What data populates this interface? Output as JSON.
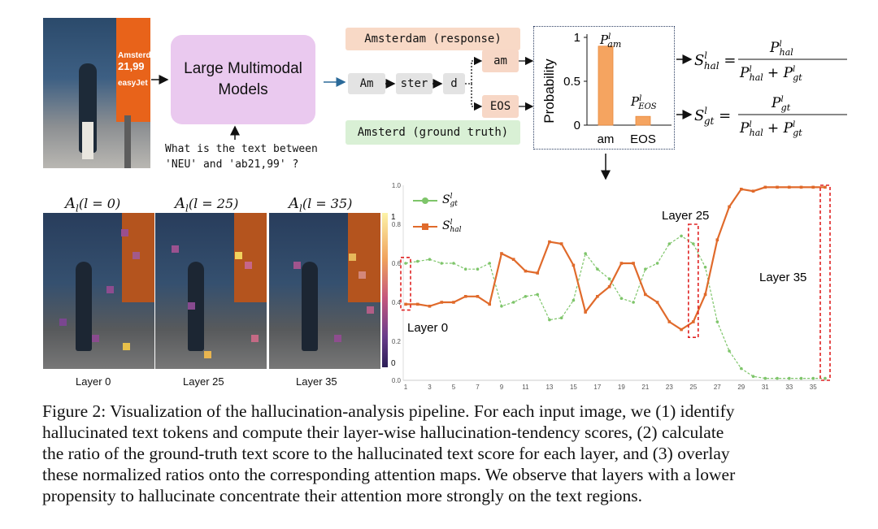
{
  "pipeline": {
    "model_label_line1": "Large Multimodal",
    "model_label_line2": "Models",
    "question_line1": "What is the text between",
    "question_line2": "'NEU' and 'ab21,99' ?",
    "response_label": "Amsterdam (response)",
    "ground_truth_label": "Amsterd (ground truth)",
    "tokens": [
      "Am",
      "ster",
      "d"
    ],
    "candidate_am": "am",
    "candidate_eos": "EOS",
    "photo_text_line1": "Amsterd",
    "photo_text_line2": "21,99",
    "photo_text_line3": "easyJet"
  },
  "prob_chart": {
    "type": "bar",
    "categories": [
      "am",
      "EOS"
    ],
    "values": [
      0.9,
      0.1
    ],
    "ylabel": "Probability",
    "yticks": [
      "0",
      "0.5",
      "1"
    ],
    "ylim": [
      0,
      1
    ],
    "label_am_base": "P",
    "label_am_sup": "l",
    "label_am_sub": "am",
    "label_eos_base": "P",
    "label_eos_sup": "l",
    "label_eos_sub": "EOS",
    "color": "#f5a460"
  },
  "formulas": {
    "hal_lhs": "S",
    "hal_lhs_sub": "hal",
    "gt_lhs": "S",
    "gt_lhs_sub": "gt",
    "sup": "l",
    "num_hal": "hal",
    "num_gt": "gt",
    "P": "P",
    "plus": "+"
  },
  "heatmaps": {
    "titles": [
      "A",
      "A",
      "A"
    ],
    "title_args": [
      "(l = 0)",
      "(l = 25)",
      "(l = 35)"
    ],
    "labels": [
      "Layer 0",
      "Layer 25",
      "Layer 35"
    ],
    "colorbar_ticks": [
      "1",
      "0"
    ]
  },
  "chart_data": {
    "type": "line",
    "x": [
      1,
      2,
      3,
      4,
      5,
      6,
      7,
      8,
      9,
      10,
      11,
      12,
      13,
      14,
      15,
      16,
      17,
      18,
      19,
      20,
      21,
      22,
      23,
      24,
      25,
      26,
      27,
      28,
      29,
      30,
      31,
      32,
      33,
      34,
      35,
      36
    ],
    "xticks": [
      "1",
      "3",
      "5",
      "7",
      "9",
      "11",
      "13",
      "15",
      "17",
      "19",
      "21",
      "23",
      "25",
      "27",
      "29",
      "31",
      "33",
      "35"
    ],
    "yticks": [
      "0.0",
      "0.2",
      "0.4",
      "0.6",
      "0.8",
      "1.0"
    ],
    "ylim": [
      0,
      1
    ],
    "series": [
      {
        "name": "S_gt",
        "sup": "l",
        "sub": "gt",
        "color": "#7ec56a",
        "values": [
          0.6,
          0.61,
          0.62,
          0.6,
          0.6,
          0.57,
          0.57,
          0.6,
          0.38,
          0.4,
          0.43,
          0.44,
          0.31,
          0.32,
          0.41,
          0.65,
          0.57,
          0.52,
          0.42,
          0.4,
          0.57,
          0.6,
          0.7,
          0.74,
          0.7,
          0.58,
          0.3,
          0.15,
          0.06,
          0.02,
          0.01,
          0.01,
          0.01,
          0.01,
          0.01,
          0.01
        ]
      },
      {
        "name": "S_hal",
        "sup": "l",
        "sub": "hal",
        "color": "#e06a2b",
        "values": [
          0.39,
          0.39,
          0.38,
          0.4,
          0.4,
          0.43,
          0.43,
          0.39,
          0.65,
          0.62,
          0.56,
          0.55,
          0.71,
          0.7,
          0.59,
          0.35,
          0.43,
          0.48,
          0.6,
          0.6,
          0.44,
          0.4,
          0.3,
          0.26,
          0.3,
          0.44,
          0.72,
          0.89,
          0.98,
          0.97,
          0.99,
          0.99,
          0.99,
          0.99,
          0.99,
          0.99
        ]
      }
    ],
    "annotations": [
      "Layer 0",
      "Layer 25",
      "Layer 35"
    ],
    "highlight_layers": [
      1,
      25,
      36
    ]
  },
  "caption": {
    "line1": "Figure 2: Visualization of the hallucination-analysis pipeline. For each input image, we (1) identify",
    "line2": "hallucinated text tokens and compute their layer-wise hallucination-tendency scores, (2) calculate",
    "line3": "the ratio of the ground-truth text score to the hallucinated text score for each layer, and (3) overlay",
    "line4": "these normalized ratios onto the corresponding attention maps. We observe that layers with a lower",
    "line5": "propensity to hallucinate concentrate their attention more strongly on the text regions."
  }
}
